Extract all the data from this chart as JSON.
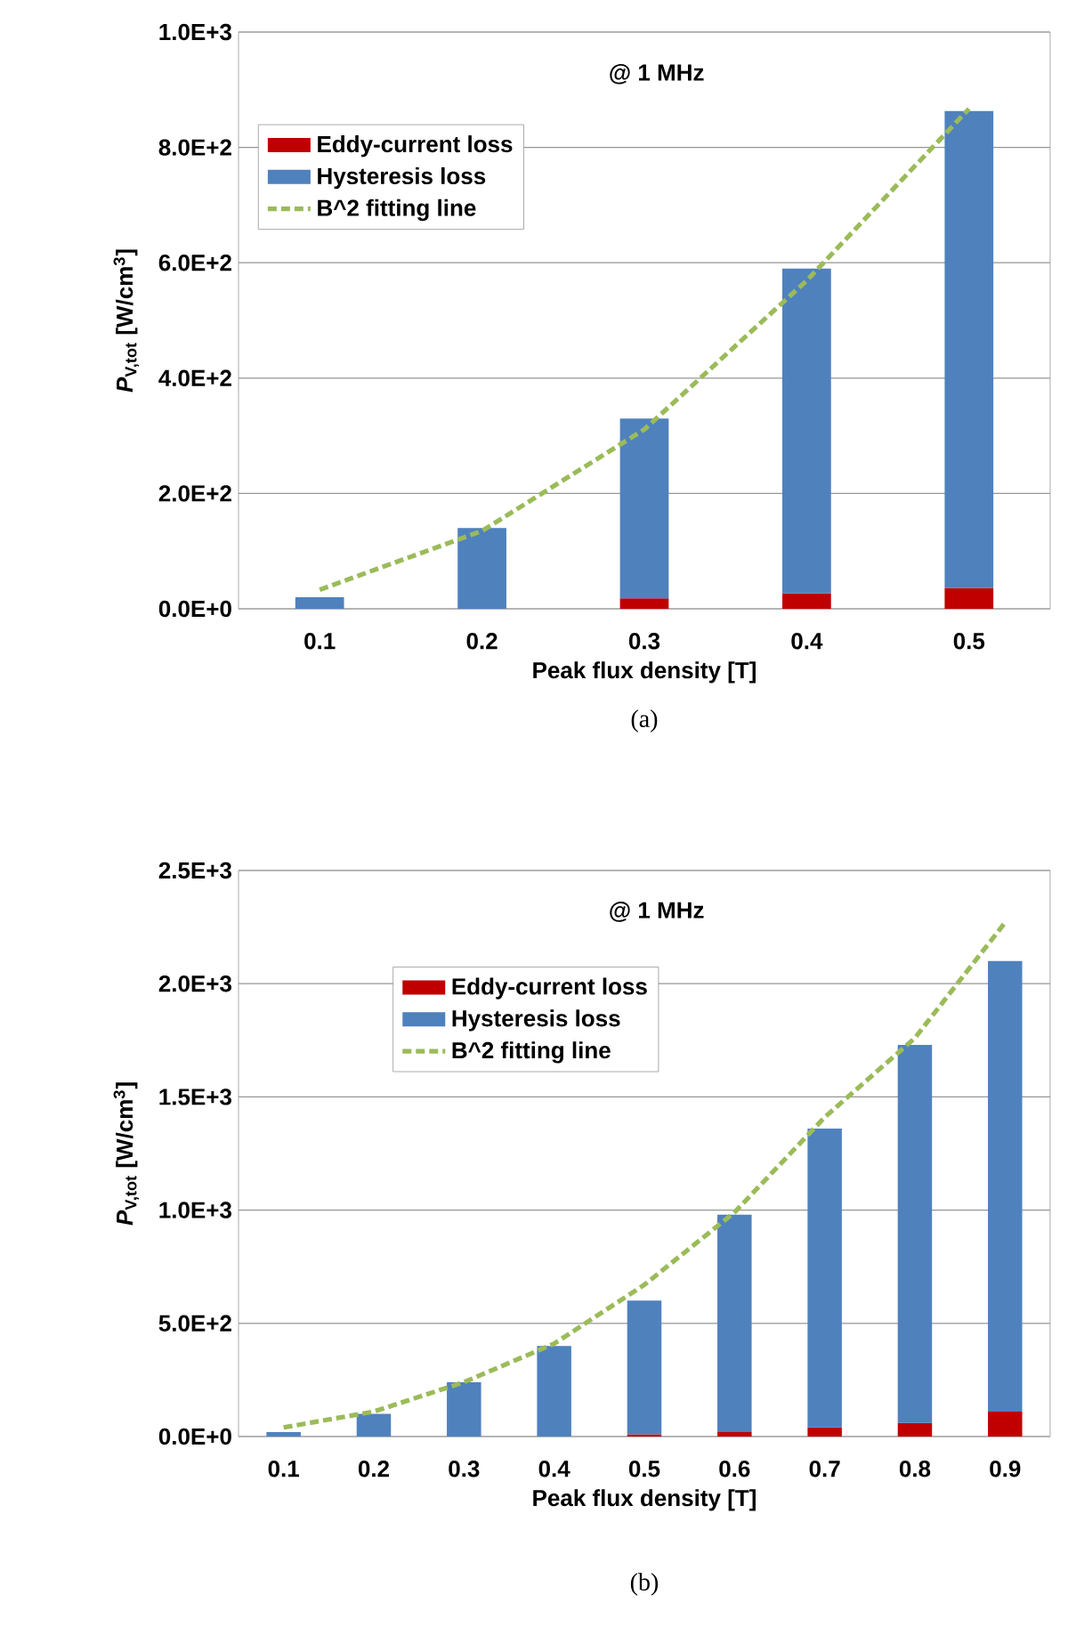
{
  "chart_data": [
    {
      "type": "bar",
      "stacked": true,
      "categories": [
        "0.1",
        "0.2",
        "0.3",
        "0.4",
        "0.5"
      ],
      "xlabel": "Peak flux density [T]",
      "ylabel": "*P*$_{V,tot}$ [W/cm$^{3}$]",
      "series": [
        {
          "name": "Eddy-current loss",
          "color": "#c00000",
          "values": [
            0,
            0,
            18,
            27,
            36
          ]
        },
        {
          "name": "Hysteresis loss",
          "color": "#4f81bd",
          "values": [
            20,
            140,
            312,
            563,
            827
          ]
        },
        {
          "name": "B^2 fitting line",
          "type": "line",
          "line_style": "dashed",
          "marker": "none",
          "color": "#9bbb59",
          "values": [
            33,
            135,
            311,
            569,
            867
          ]
        }
      ],
      "ylim": [
        0,
        1000
      ],
      "yticks": [
        {
          "value": 0,
          "label": "0.0E+0"
        },
        {
          "value": 200,
          "label": "2.0E+2"
        },
        {
          "value": 400,
          "label": "4.0E+2"
        },
        {
          "value": 600,
          "label": "6.0E+2"
        },
        {
          "value": 800,
          "label": "8.0E+2"
        },
        {
          "value": 1000,
          "label": "1.0E+3"
        }
      ],
      "grid": "y",
      "legend": "top left",
      "annotations": [
        "@ 1 MHz",
        "(a)"
      ]
    },
    {
      "type": "bar",
      "stacked": true,
      "categories": [
        "0.1",
        "0.2",
        "0.3",
        "0.4",
        "0.5",
        "0.6",
        "0.7",
        "0.8",
        "0.9"
      ],
      "xlabel": "Peak flux density [T]",
      "ylabel": "*P*$_{V,tot}$ [W/cm$^{3}$]",
      "series": [
        {
          "name": "Eddy-current loss",
          "color": "#c00000",
          "values": [
            0,
            0,
            0,
            0,
            10,
            20,
            40,
            60,
            110
          ]
        },
        {
          "name": "Hysteresis loss",
          "color": "#4f81bd",
          "values": [
            20,
            100,
            240,
            400,
            590,
            960,
            1320,
            1670,
            1990
          ]
        },
        {
          "name": "B^2 fitting line",
          "type": "line",
          "line_style": "dashed",
          "marker": "none",
          "color": "#9bbb59",
          "values": [
            40,
            110,
            240,
            410,
            670,
            990,
            1410,
            1760,
            2270
          ]
        }
      ],
      "ylim": [
        0,
        2500
      ],
      "yticks": [
        {
          "value": 0,
          "label": "0.0E+0"
        },
        {
          "value": 500,
          "label": "5.0E+2"
        },
        {
          "value": 1000,
          "label": "1.0E+3"
        },
        {
          "value": 1500,
          "label": "1.5E+3"
        },
        {
          "value": 2000,
          "label": "2.0E+3"
        },
        {
          "value": 2500,
          "label": "2.5E+3"
        }
      ],
      "grid": "y",
      "legend": "top left",
      "annotations": [
        "@ 1 MHz",
        "(b)"
      ]
    }
  ]
}
